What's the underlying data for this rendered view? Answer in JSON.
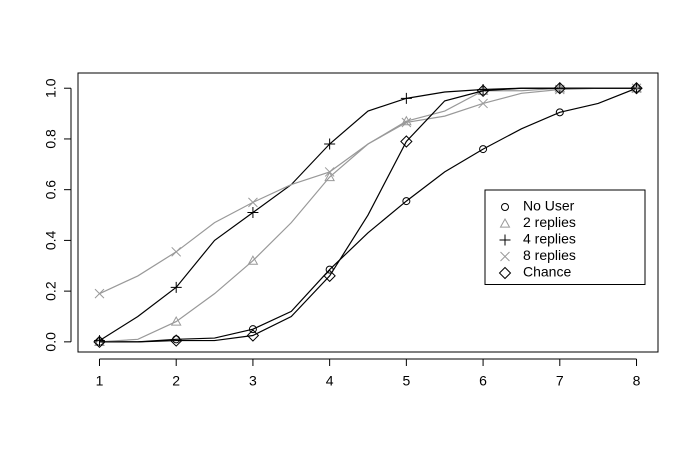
{
  "chart_data": {
    "type": "line",
    "x": [
      1,
      1.5,
      2,
      2.5,
      3,
      3.5,
      4,
      4.5,
      5,
      5.5,
      6,
      6.5,
      7,
      7.5,
      8
    ],
    "series": [
      {
        "name": "No User",
        "color": "#000000",
        "marker": "circle",
        "values": [
          0,
          0,
          0.01,
          0.015,
          0.05,
          0.12,
          0.285,
          0.43,
          0.555,
          0.67,
          0.76,
          0.84,
          0.905,
          0.94,
          1.0
        ]
      },
      {
        "name": "2 replies",
        "color": "#999999",
        "marker": "triangle",
        "values": [
          0,
          0.01,
          0.08,
          0.19,
          0.32,
          0.47,
          0.65,
          0.78,
          0.87,
          0.91,
          0.99,
          0.99,
          1.0,
          1.0,
          1.0
        ]
      },
      {
        "name": "4 replies",
        "color": "#000000",
        "marker": "plus",
        "values": [
          0.005,
          0.1,
          0.215,
          0.4,
          0.51,
          0.62,
          0.78,
          0.91,
          0.96,
          0.985,
          0.995,
          1.0,
          1.0,
          1.0,
          1.0
        ]
      },
      {
        "name": "8 replies",
        "color": "#999999",
        "marker": "cross",
        "values": [
          0.19,
          0.26,
          0.355,
          0.47,
          0.55,
          0.62,
          0.67,
          0.78,
          0.865,
          0.89,
          0.94,
          0.98,
          0.995,
          1.0,
          1.0
        ]
      },
      {
        "name": "Chance",
        "color": "#000000",
        "marker": "diamond",
        "values": [
          0,
          0,
          0.005,
          0.005,
          0.025,
          0.1,
          0.26,
          0.5,
          0.79,
          0.95,
          0.99,
          1.0,
          1.0,
          1.0,
          1.0
        ]
      }
    ],
    "xlim": [
      0.72,
      8.28
    ],
    "xticks": [
      1,
      2,
      3,
      4,
      5,
      6,
      7,
      8
    ],
    "ylim": [
      -0.04,
      1.06
    ],
    "yticks": [
      {
        "value": 0,
        "label": "0.0"
      },
      0.2,
      0.4,
      0.6,
      0.8,
      {
        "value": 1,
        "label": "1.0"
      }
    ],
    "legend": "right"
  }
}
